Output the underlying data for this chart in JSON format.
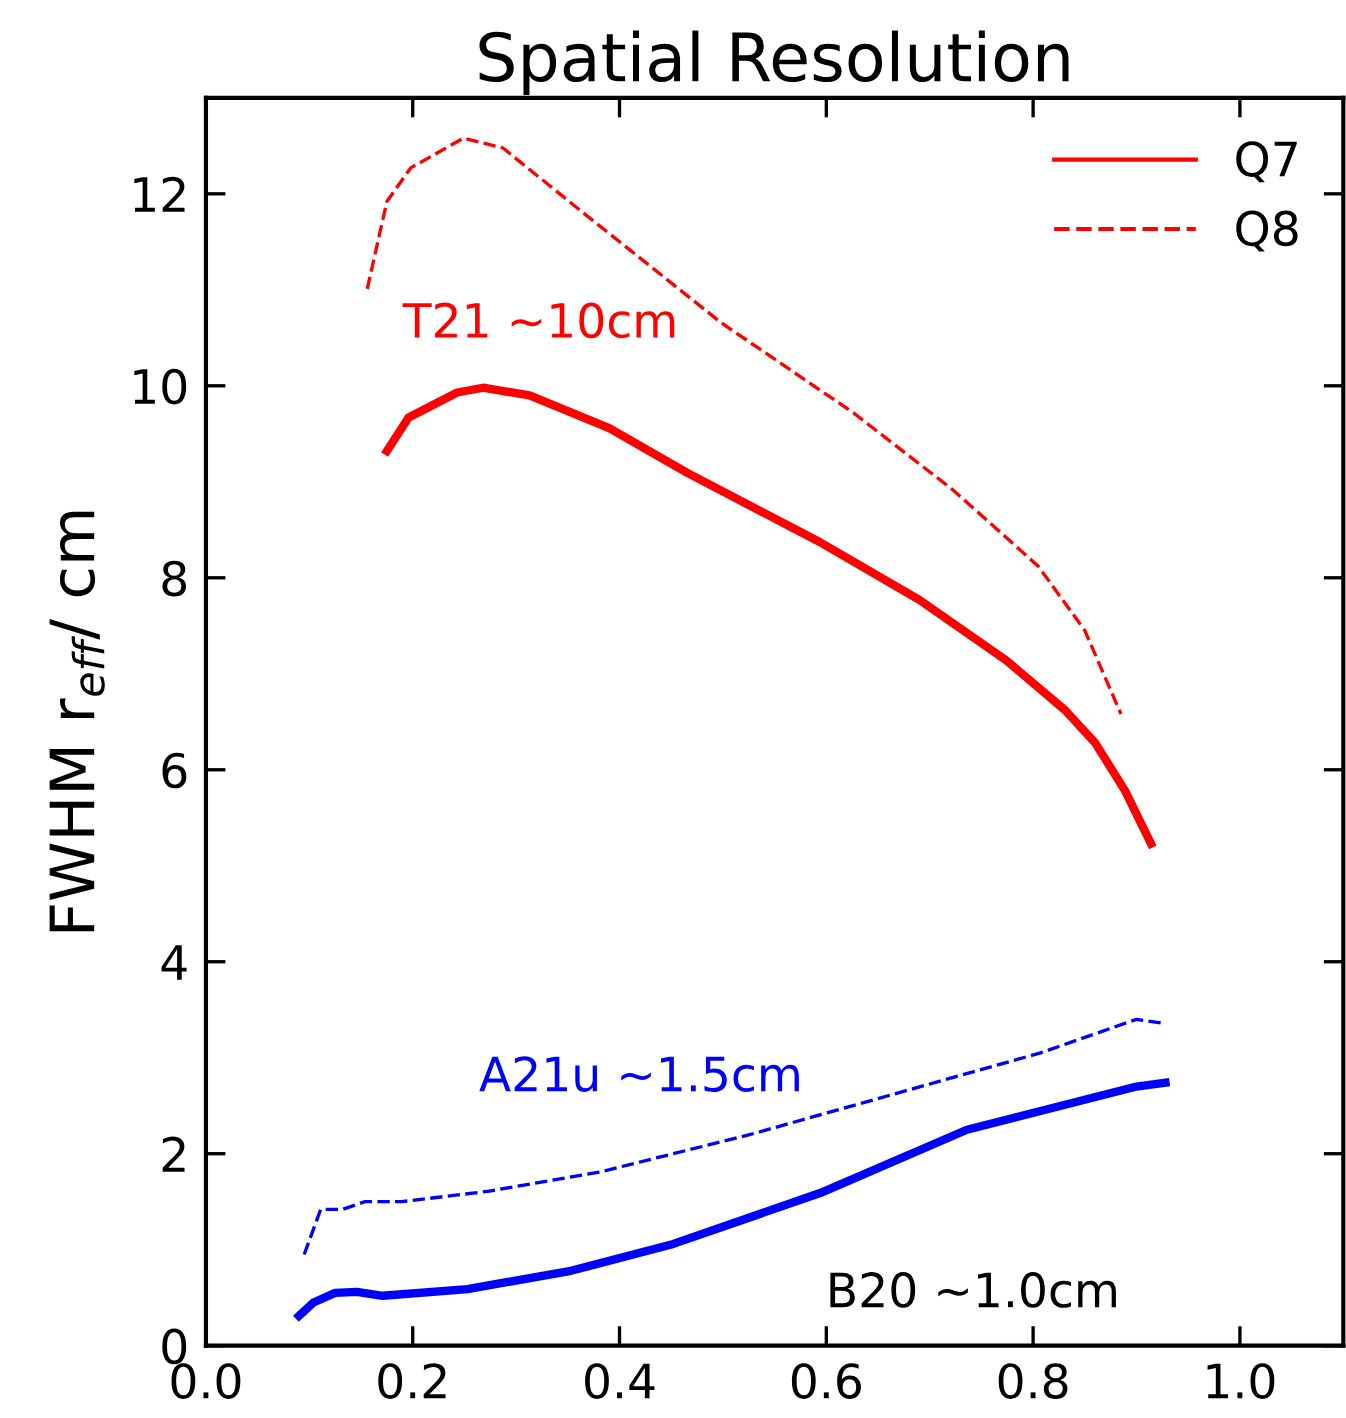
{
  "chart_data": {
    "type": "line",
    "title": "Spatial Resolution",
    "ylabel": "FWHM r$_{eff}$/ cm",
    "xlim": [
      0,
      1.1
    ],
    "ylim": [
      0,
      13
    ],
    "xticks": [
      {
        "value": 0,
        "label": "0.0"
      },
      0.2,
      0.4,
      0.6,
      0.8,
      {
        "value": 1,
        "label": "1.0"
      }
    ],
    "yticks": [
      0,
      2,
      4,
      6,
      8,
      10,
      12
    ],
    "grid": false,
    "legend": "top right",
    "marker": "none",
    "series": [
      {
        "name": "Q7",
        "color": "#ff0000",
        "line_style": "solid",
        "x": [
          0.175,
          0.196,
          0.243,
          0.268,
          0.313,
          0.39,
          0.466,
          0.594,
          0.69,
          0.774,
          0.831,
          0.86,
          0.889,
          0.914
        ],
        "values": [
          9.32,
          9.67,
          9.93,
          9.98,
          9.9,
          9.56,
          9.09,
          8.37,
          7.77,
          7.14,
          6.62,
          6.28,
          5.78,
          5.23
        ]
      },
      {
        "name": "Q8",
        "color": "#ff0000",
        "line_style": "dashed",
        "x": [
          0.156,
          0.175,
          0.198,
          0.249,
          0.287,
          0.364,
          0.498,
          0.626,
          0.722,
          0.805,
          0.85,
          0.885
        ],
        "values": [
          11.01,
          11.92,
          12.27,
          12.58,
          12.48,
          11.81,
          10.66,
          9.72,
          8.92,
          8.12,
          7.45,
          6.58
        ]
      },
      {
        "color": "#0000ff",
        "line_style": "solid",
        "x": [
          0.09,
          0.104,
          0.125,
          0.146,
          0.171,
          0.253,
          0.353,
          0.452,
          0.594,
          0.736,
          0.9,
          0.928
        ],
        "values": [
          0.31,
          0.45,
          0.55,
          0.56,
          0.52,
          0.59,
          0.78,
          1.06,
          1.59,
          2.25,
          2.7,
          2.74
        ]
      },
      {
        "color": "#0000ff",
        "line_style": "dashed",
        "x": [
          0.095,
          0.111,
          0.132,
          0.154,
          0.189,
          0.274,
          0.381,
          0.523,
          0.665,
          0.807,
          0.9,
          0.925
        ],
        "values": [
          0.95,
          1.42,
          1.42,
          1.5,
          1.5,
          1.61,
          1.81,
          2.19,
          2.62,
          3.05,
          3.4,
          3.36
        ]
      }
    ],
    "annotations": [
      "T21 ~10cm",
      "A21u ~1.5cm",
      "B20 ~1.0cm"
    ]
  }
}
